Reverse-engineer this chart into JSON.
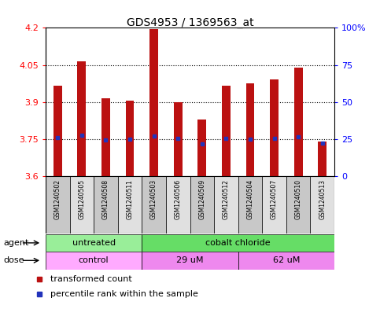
{
  "title": "GDS4953 / 1369563_at",
  "samples": [
    "GSM1240502",
    "GSM1240505",
    "GSM1240508",
    "GSM1240511",
    "GSM1240503",
    "GSM1240506",
    "GSM1240509",
    "GSM1240512",
    "GSM1240504",
    "GSM1240507",
    "GSM1240510",
    "GSM1240513"
  ],
  "bar_values": [
    3.965,
    4.065,
    3.915,
    3.905,
    4.195,
    3.9,
    3.83,
    3.965,
    3.975,
    3.99,
    4.04,
    3.74
  ],
  "bar_bottom": 3.6,
  "percentile_values": [
    3.755,
    3.765,
    3.745,
    3.748,
    3.762,
    3.752,
    3.73,
    3.752,
    3.748,
    3.752,
    3.758,
    3.735
  ],
  "bar_color": "#bb1111",
  "percentile_color": "#2233bb",
  "ylim_left": [
    3.6,
    4.2
  ],
  "ylim_right": [
    0,
    100
  ],
  "yticks_left": [
    3.6,
    3.75,
    3.9,
    4.05,
    4.2
  ],
  "ytick_labels_left": [
    "3.6",
    "3.75",
    "3.9",
    "4.05",
    "4.2"
  ],
  "yticks_right": [
    0,
    25,
    50,
    75,
    100
  ],
  "ytick_labels_right": [
    "0",
    "25",
    "50",
    "75",
    "100%"
  ],
  "hlines": [
    3.75,
    3.9,
    4.05
  ],
  "agent_groups": [
    {
      "text": "untreated",
      "start": 0,
      "end": 4,
      "color": "#99ee99"
    },
    {
      "text": "cobalt chloride",
      "start": 4,
      "end": 12,
      "color": "#66dd66"
    }
  ],
  "dose_groups": [
    {
      "text": "control",
      "start": 0,
      "end": 4,
      "color": "#ffaaff"
    },
    {
      "text": "29 uM",
      "start": 4,
      "end": 8,
      "color": "#ee88ee"
    },
    {
      "text": "62 uM",
      "start": 8,
      "end": 12,
      "color": "#ee88ee"
    }
  ],
  "legend_items": [
    {
      "label": "transformed count",
      "color": "#bb1111"
    },
    {
      "label": "percentile rank within the sample",
      "color": "#2233bb"
    }
  ],
  "bar_bg_colors": [
    "#c8c8c8",
    "#e0e0e0"
  ],
  "plot_bg": "#ffffff",
  "bar_width": 0.35
}
